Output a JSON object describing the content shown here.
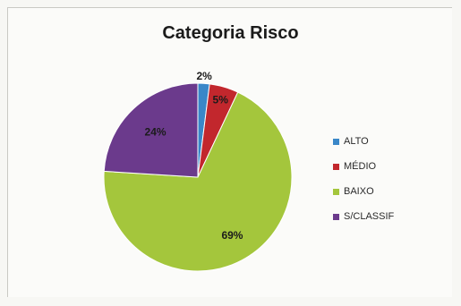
{
  "chart_data": {
    "type": "pie",
    "title": "Categoria Risco",
    "categories": [
      "ALTO",
      "MÉDIO",
      "BAIXO",
      "S/CLASSIF"
    ],
    "values": [
      2,
      5,
      69,
      24
    ],
    "data_labels": [
      "2%",
      "5%",
      "69%",
      "24%"
    ],
    "colors": [
      "#3a87c8",
      "#c2272d",
      "#a4c63c",
      "#6b3a8c"
    ],
    "legend_position": "right"
  }
}
